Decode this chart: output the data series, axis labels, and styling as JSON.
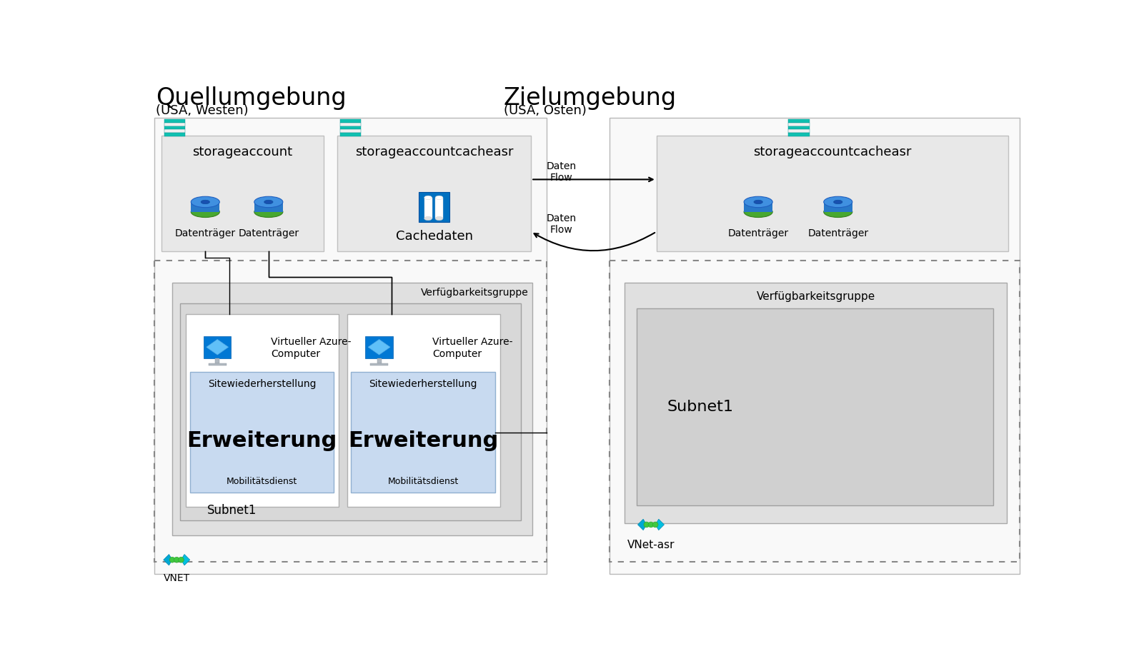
{
  "bg_color": "#ffffff",
  "source_title": "Quellumgebung",
  "source_subtitle": "(USA, Westen)",
  "target_title": "Zielumgebung",
  "target_subtitle": "(USA, Osten)",
  "storage_account_label": "storageaccount",
  "storage_cache_label": "storageaccountcacheasr",
  "cache_data_label": "Cachedaten",
  "disk_label": "Datenträger",
  "verfug_label": "Verfügbarkeitsgruppe",
  "subnet_label": "Subnet1",
  "vnet_label": "VNET",
  "vnet_asr_label": "VNet-asr",
  "vm_label": "Virtueller Azure-\nComputer",
  "site_label": "Sitewiederherstellung",
  "erweiterung_label": "Erweiterung",
  "mobil_label": "Mobilitätsdienst",
  "daten_flow": "Daten\nFlow",
  "col_light_gray": "#e8e8e8",
  "col_mid_gray": "#d4d4d4",
  "col_dark_gray": "#c0c0c0",
  "col_light_blue": "#bfd7f0",
  "col_azure_blue": "#0078d4",
  "col_teal1": "#00b4b4",
  "col_teal2": "#1ab8b8",
  "col_white": "#ffffff",
  "col_black": "#000000",
  "col_border": "#b0b0b0",
  "col_disk_blue_top": "#3090e0",
  "col_disk_blue_body": "#2878c8",
  "col_disk_green": "#4aaa3a",
  "col_disk_hole": "#1050a8"
}
